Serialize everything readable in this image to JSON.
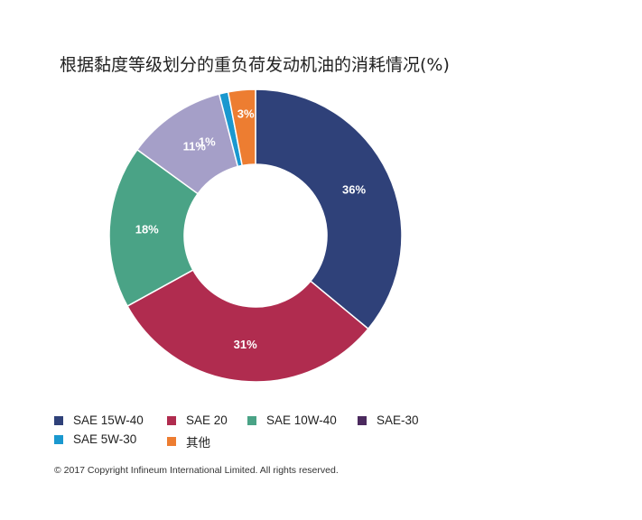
{
  "chart_data": {
    "type": "pie",
    "donut": true,
    "title": "根据黏度等级划分的重负荷发动机油的消耗情况(%)",
    "categories": [
      "SAE 15W-40",
      "SAE 20",
      "SAE 10W-40",
      "SAE-30",
      "SAE 5W-30",
      "其他"
    ],
    "values": [
      36,
      31,
      18,
      11,
      1,
      3
    ],
    "data_labels": [
      "36%",
      "31%",
      "18%",
      "11%",
      "1%",
      "3%"
    ],
    "colors": [
      "#2f4179",
      "#b02c4f",
      "#4aa386",
      "#a59fc8",
      "#1a98cf",
      "#ed7d31"
    ],
    "legend_colors": [
      "#2f4179",
      "#b02c4f",
      "#4aa386",
      "#4b2a5e",
      "#1a98cf",
      "#ed7d31"
    ],
    "legend_position": "bottom"
  },
  "copyright": "© 2017 Copyright Infineum International Limited. All rights reserved."
}
